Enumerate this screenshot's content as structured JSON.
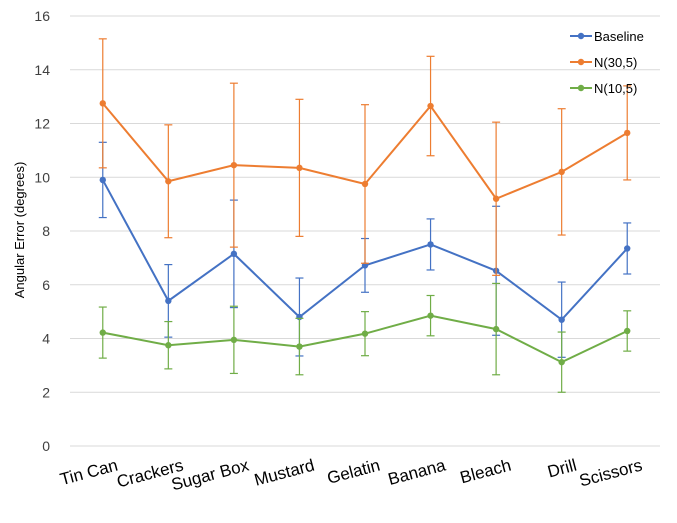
{
  "chart_data": {
    "type": "line",
    "title": "",
    "xlabel": "",
    "ylabel": "Angular Error (degrees)",
    "ylim": [
      0,
      16
    ],
    "yticks": [
      0,
      2,
      4,
      6,
      8,
      10,
      12,
      14,
      16
    ],
    "grid": true,
    "legend_position": "top-right",
    "categories": [
      "Tin Can",
      "Crackers",
      "Sugar Box",
      "Mustard",
      "Gelatin",
      "Banana",
      "Bleach",
      "Drill",
      "Scissors"
    ],
    "series": [
      {
        "name": "Baseline",
        "color": "#4472C4",
        "values": [
          9.9,
          5.4,
          7.15,
          4.8,
          6.72,
          7.5,
          6.52,
          4.7,
          7.35
        ],
        "error": [
          1.4,
          1.35,
          2.0,
          1.45,
          1.0,
          0.95,
          2.4,
          1.4,
          0.95
        ]
      },
      {
        "name": "N(30,5)",
        "color": "#ED7D31",
        "values": [
          12.75,
          9.85,
          10.45,
          10.35,
          9.75,
          12.65,
          9.2,
          10.2,
          11.65
        ],
        "error": [
          2.4,
          2.1,
          3.05,
          2.55,
          2.95,
          1.85,
          2.85,
          2.35,
          1.75
        ]
      },
      {
        "name": "N(10,5)",
        "color": "#70AD47",
        "values": [
          4.22,
          3.75,
          3.95,
          3.7,
          4.18,
          4.85,
          4.35,
          3.12,
          4.28
        ],
        "error": [
          0.95,
          0.88,
          1.25,
          1.05,
          0.82,
          0.75,
          1.7,
          1.12,
          0.75
        ]
      }
    ]
  }
}
